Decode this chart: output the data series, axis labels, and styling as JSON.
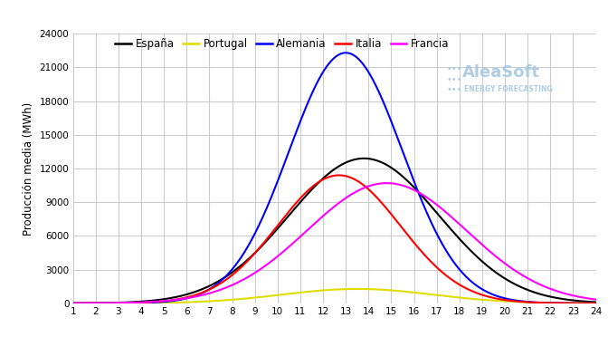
{
  "ylabel": "Producción media (MWh)",
  "xlim": [
    1,
    24
  ],
  "ylim": [
    0,
    24000
  ],
  "yticks": [
    0,
    3000,
    6000,
    9000,
    12000,
    15000,
    18000,
    21000,
    24000
  ],
  "xticks": [
    1,
    2,
    3,
    4,
    5,
    6,
    7,
    8,
    9,
    10,
    11,
    12,
    13,
    14,
    15,
    16,
    17,
    18,
    19,
    20,
    21,
    22,
    23,
    24
  ],
  "background_color": "#ffffff",
  "grid_color": "#cccccc",
  "series": [
    {
      "name": "España",
      "color": "#000000",
      "peak": 12900,
      "peak_hour": 13.8,
      "sigma": 3.3,
      "start": 7.0,
      "end": 20.5
    },
    {
      "name": "Portugal",
      "color": "#dddd00",
      "peak": 1280,
      "peak_hour": 13.5,
      "sigma": 3.3,
      "start": 8.5,
      "end": 19.0
    },
    {
      "name": "Alemania",
      "color": "#0000ff",
      "peak": 22300,
      "peak_hour": 13.0,
      "sigma": 2.5,
      "start": 7.0,
      "end": 19.2
    },
    {
      "name": "Italia",
      "color": "#ff0000",
      "peak": 11400,
      "peak_hour": 12.7,
      "sigma": 2.7,
      "start": 7.0,
      "end": 18.8
    },
    {
      "name": "Francia",
      "color": "#ff00ff",
      "peak": 10700,
      "peak_hour": 14.8,
      "sigma": 3.5,
      "start": 8.5,
      "end": 21.5
    }
  ],
  "legend_order": [
    "España",
    "Portugal",
    "Alemania",
    "Italia",
    "Francia"
  ],
  "watermark_text": "AleaSoft",
  "watermark_sub": "ENERGY FORECASTING"
}
